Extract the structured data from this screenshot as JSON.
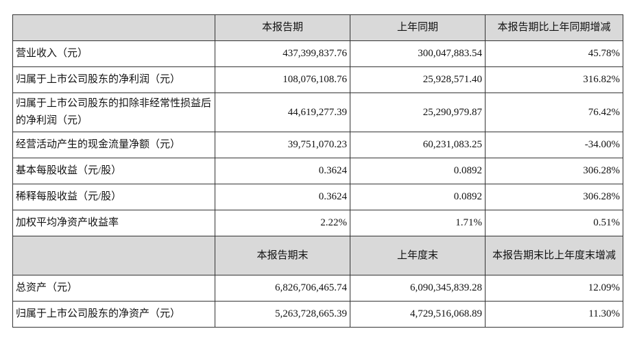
{
  "section1": {
    "headers": [
      "",
      "本报告期",
      "上年同期",
      "本报告期比上年同期增减"
    ],
    "rows": [
      {
        "label": "营业收入（元）",
        "current": "437,399,837.76",
        "prior": "300,047,883.54",
        "change": "45.78%"
      },
      {
        "label": "归属于上市公司股东的净利润（元）",
        "current": "108,076,108.76",
        "prior": "25,928,571.40",
        "change": "316.82%"
      },
      {
        "label": "归属于上市公司股东的扣除非经常性损益后的净利润（元）",
        "current": "44,619,277.39",
        "prior": "25,290,979.87",
        "change": "76.42%"
      },
      {
        "label": "经营活动产生的现金流量净额（元）",
        "current": "39,751,070.23",
        "prior": "60,231,083.25",
        "change": "-34.00%"
      },
      {
        "label": "基本每股收益（元/股）",
        "current": "0.3624",
        "prior": "0.0892",
        "change": "306.28%"
      },
      {
        "label": "稀释每股收益（元/股）",
        "current": "0.3624",
        "prior": "0.0892",
        "change": "306.28%"
      },
      {
        "label": "加权平均净资产收益率",
        "current": "2.22%",
        "prior": "1.71%",
        "change": "0.51%"
      }
    ]
  },
  "section2": {
    "headers": [
      "",
      "本报告期末",
      "上年度末",
      "本报告期末比上年度末增减"
    ],
    "rows": [
      {
        "label": "总资产（元）",
        "current": "6,826,706,465.74",
        "prior": "6,090,345,839.28",
        "change": "12.09%"
      },
      {
        "label": "归属于上市公司股东的净资产（元）",
        "current": "5,263,728,665.39",
        "prior": "4,729,516,068.89",
        "change": "11.30%"
      }
    ]
  }
}
